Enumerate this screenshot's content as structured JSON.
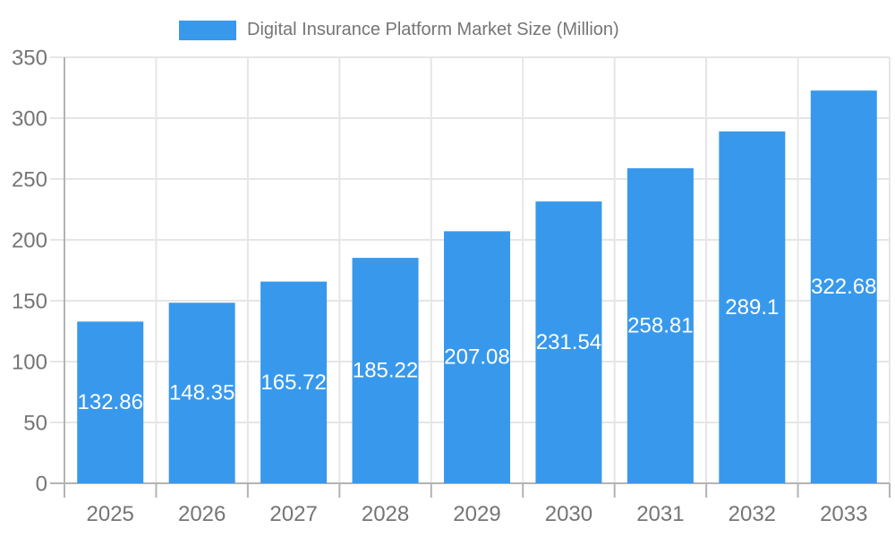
{
  "legend": {
    "label": "Digital Insurance Platform Market Size (Million)"
  },
  "chart_data": {
    "type": "bar",
    "title": "Digital Insurance Platform Market Size (Million)",
    "categories": [
      "2025",
      "2026",
      "2027",
      "2028",
      "2029",
      "2030",
      "2031",
      "2032",
      "2033"
    ],
    "values": [
      132.86,
      148.35,
      165.72,
      185.22,
      207.08,
      231.54,
      258.81,
      289.1,
      322.68
    ],
    "value_labels": [
      "132.86",
      "148.35",
      "165.72",
      "185.22",
      "207.08",
      "231.54",
      "258.81",
      "289.1",
      "322.68"
    ],
    "xlabel": "",
    "ylabel": "",
    "ylim": [
      0,
      350
    ],
    "ytick_step": 50,
    "ytick_labels": [
      "0",
      "50",
      "100",
      "150",
      "200",
      "250",
      "300",
      "350"
    ],
    "grid": true,
    "legend_position": "top",
    "colors": {
      "bar": "#3899ec",
      "bar_label": "#ffffff",
      "axis_text": "#757575",
      "grid": "#e6e6e6",
      "axis_line": "#b3b3b3",
      "background": "#ffffff"
    }
  }
}
